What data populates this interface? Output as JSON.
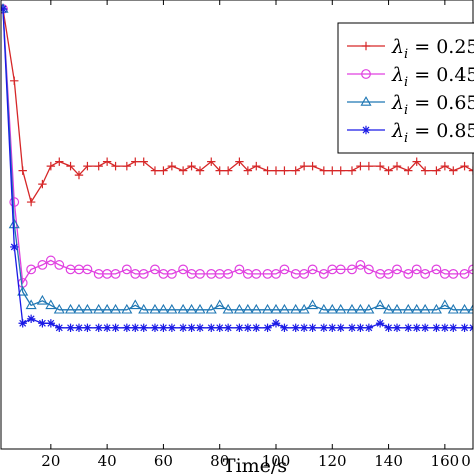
{
  "chart_data": {
    "type": "line",
    "xlabel": "Time/s",
    "ylabel": "",
    "xlim": [
      3,
      170
    ],
    "ylim": [
      0,
      100
    ],
    "x_ticks": [
      20,
      40,
      60,
      80,
      100,
      120,
      140,
      160
    ],
    "x_tick_labels": [
      "20",
      "40",
      "60",
      "80",
      "100",
      "120",
      "140",
      "160"
    ],
    "x_tick_label_last": "0",
    "grid": false,
    "legend_position": "top-right",
    "series": [
      {
        "name": "λ_i = 0.25",
        "legend_symbol": "λ",
        "legend_subscript": "i",
        "legend_value_text": " = 0.25",
        "legend_tail_text": "0",
        "color": "#d62728",
        "marker": "plus",
        "x": [
          3,
          7,
          10,
          13,
          17,
          20,
          23,
          27,
          30,
          33,
          37,
          40,
          43,
          47,
          50,
          53,
          57,
          60,
          63,
          67,
          70,
          73,
          77,
          80,
          83,
          87,
          90,
          93,
          97,
          100,
          103,
          107,
          110,
          113,
          117,
          120,
          123,
          127,
          130,
          133,
          137,
          140,
          143,
          147,
          150,
          153,
          157,
          160,
          163,
          167,
          170
        ],
        "y": [
          98,
          82,
          62,
          55,
          59,
          63,
          64,
          63,
          61,
          63,
          63,
          64,
          63,
          63,
          64,
          64,
          62,
          62,
          63,
          62,
          63,
          62,
          64,
          62,
          62,
          64,
          62,
          63,
          62,
          62,
          62,
          62,
          63,
          63,
          62,
          62,
          62,
          62,
          63,
          63,
          63,
          62,
          63,
          62,
          64,
          62,
          62,
          63,
          62,
          63,
          62
        ]
      },
      {
        "name": "λ_i = 0.45",
        "legend_symbol": "λ",
        "legend_subscript": "i",
        "legend_value_text": " = 0.45",
        "legend_tail_text": "0",
        "color": "#e040e0",
        "marker": "circle",
        "x": [
          3,
          7,
          10,
          13,
          17,
          20,
          23,
          27,
          30,
          33,
          37,
          40,
          43,
          47,
          50,
          53,
          57,
          60,
          63,
          67,
          70,
          73,
          77,
          80,
          83,
          87,
          90,
          93,
          97,
          100,
          103,
          107,
          110,
          113,
          117,
          120,
          123,
          127,
          130,
          133,
          137,
          140,
          143,
          147,
          150,
          153,
          157,
          160,
          163,
          167,
          170
        ],
        "y": [
          98,
          55,
          37,
          40,
          41,
          42,
          41,
          40,
          40,
          40,
          39,
          39,
          39,
          40,
          39,
          39,
          40,
          39,
          39,
          40,
          39,
          39,
          39,
          39,
          39,
          40,
          39,
          39,
          39,
          39,
          40,
          39,
          39,
          40,
          39,
          40,
          40,
          40,
          41,
          40,
          39,
          39,
          40,
          39,
          40,
          39,
          40,
          39,
          39,
          39,
          40
        ]
      },
      {
        "name": "λ_i = 0.65",
        "legend_symbol": "λ",
        "legend_subscript": "i",
        "legend_value_text": " = 0.65",
        "legend_tail_text": "0",
        "color": "#1f77b4",
        "marker": "triangle",
        "x": [
          3,
          7,
          10,
          13,
          17,
          20,
          23,
          27,
          30,
          33,
          37,
          40,
          43,
          47,
          50,
          53,
          57,
          60,
          63,
          67,
          70,
          73,
          77,
          80,
          83,
          87,
          90,
          93,
          97,
          100,
          103,
          107,
          110,
          113,
          117,
          120,
          123,
          127,
          130,
          133,
          137,
          140,
          143,
          147,
          150,
          153,
          157,
          160,
          163,
          167,
          170
        ],
        "y": [
          98,
          50,
          35,
          32,
          33,
          32,
          31,
          31,
          31,
          31,
          31,
          31,
          31,
          31,
          32,
          31,
          31,
          31,
          31,
          31,
          31,
          31,
          31,
          32,
          31,
          31,
          31,
          31,
          31,
          31,
          31,
          31,
          31,
          32,
          31,
          31,
          31,
          31,
          31,
          31,
          32,
          31,
          31,
          31,
          31,
          31,
          31,
          32,
          31,
          31,
          31
        ]
      },
      {
        "name": "λ_i = 0.85",
        "legend_symbol": "λ",
        "legend_subscript": "i",
        "legend_value_text": " = 0.85",
        "legend_tail_text": "0",
        "color": "#1a1ae6",
        "marker": "star",
        "x": [
          3,
          7,
          10,
          13,
          17,
          20,
          23,
          27,
          30,
          33,
          37,
          40,
          43,
          47,
          50,
          53,
          57,
          60,
          63,
          67,
          70,
          73,
          77,
          80,
          83,
          87,
          90,
          93,
          97,
          100,
          103,
          107,
          110,
          113,
          117,
          120,
          123,
          127,
          130,
          133,
          137,
          140,
          143,
          147,
          150,
          153,
          157,
          160,
          163,
          167,
          170
        ],
        "y": [
          98,
          45,
          28,
          29,
          28,
          28,
          27,
          27,
          27,
          27,
          27,
          27,
          27,
          27,
          27,
          27,
          27,
          27,
          27,
          27,
          27,
          27,
          27,
          27,
          27,
          27,
          27,
          27,
          27,
          28,
          27,
          27,
          27,
          27,
          27,
          27,
          27,
          27,
          27,
          27,
          28,
          27,
          27,
          27,
          27,
          27,
          27,
          27,
          27,
          27,
          27
        ]
      }
    ]
  }
}
